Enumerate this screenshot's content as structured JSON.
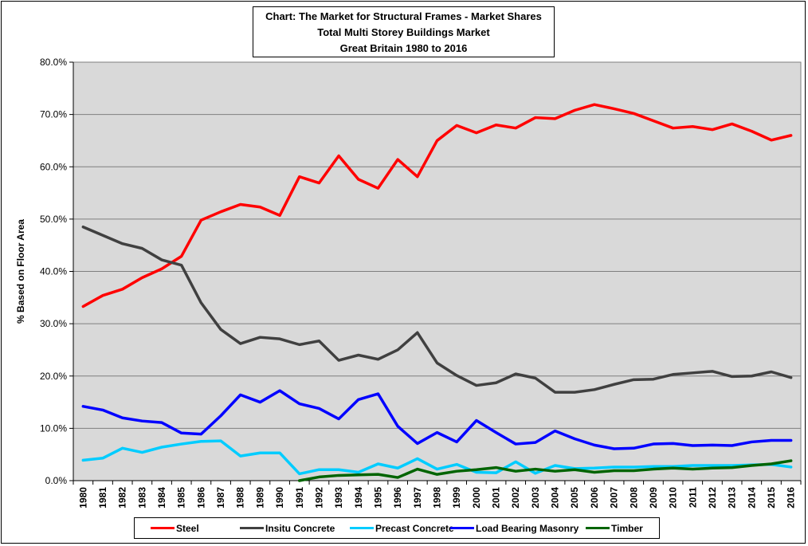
{
  "chart_data": {
    "type": "line",
    "title_lines": [
      "Chart: The Market for Structural Frames - Market Shares",
      "Total Multi Storey Buildings Market",
      "Great Britain 1980 to 2016"
    ],
    "xlabel": "",
    "ylabel": "% Based on Floor Area",
    "ylim": [
      0,
      80
    ],
    "y_ticks": [
      "0.0%",
      "10.0%",
      "20.0%",
      "30.0%",
      "40.0%",
      "50.0%",
      "60.0%",
      "70.0%",
      "80.0%"
    ],
    "grid": true,
    "background_color": "#d9d9d9",
    "legend_position": "bottom",
    "categories": [
      "1980",
      "1981",
      "1982",
      "1983",
      "1984",
      "1985",
      "1986",
      "1987",
      "1988",
      "1989",
      "1990",
      "1991",
      "1992",
      "1993",
      "1994",
      "1995",
      "1996",
      "1997",
      "1998",
      "1999",
      "2000",
      "2001",
      "2002",
      "2003",
      "2004",
      "2005",
      "2006",
      "2007",
      "2008",
      "2009",
      "2010",
      "2011",
      "2012",
      "2013",
      "2014",
      "2015",
      "2016"
    ],
    "series": [
      {
        "name": "Steel",
        "color": "#ff0000",
        "values": [
          33.3,
          35.4,
          36.6,
          38.8,
          40.5,
          42.9,
          49.8,
          51.4,
          52.8,
          52.3,
          50.7,
          58.1,
          56.9,
          62.1,
          57.6,
          55.9,
          61.4,
          58.1,
          65.0,
          67.9,
          66.5,
          68.0,
          67.4,
          69.4,
          69.2,
          70.8,
          71.9,
          71.1,
          70.2,
          68.8,
          67.4,
          67.7,
          67.1,
          68.2,
          66.8,
          65.1,
          66.0
        ]
      },
      {
        "name": "Insitu Concrete",
        "color": "#404040",
        "values": [
          48.5,
          46.9,
          45.3,
          44.4,
          42.2,
          41.2,
          34.0,
          28.9,
          26.2,
          27.4,
          27.1,
          26.0,
          26.7,
          23.0,
          24.0,
          23.2,
          25.0,
          28.3,
          22.5,
          20.1,
          18.2,
          18.7,
          20.4,
          19.6,
          16.9,
          16.9,
          17.4,
          18.4,
          19.3,
          19.4,
          20.3,
          20.6,
          20.9,
          19.9,
          20.0,
          20.8,
          19.7
        ]
      },
      {
        "name": "Precast Concrete",
        "color": "#00ccff",
        "values": [
          3.9,
          4.3,
          6.2,
          5.4,
          6.4,
          7.0,
          7.5,
          7.6,
          4.7,
          5.3,
          5.3,
          1.3,
          2.1,
          2.1,
          1.6,
          3.2,
          2.4,
          4.2,
          2.2,
          3.1,
          1.6,
          1.5,
          3.6,
          1.4,
          2.9,
          2.3,
          2.4,
          2.6,
          2.6,
          2.7,
          2.7,
          2.9,
          2.9,
          2.9,
          3.0,
          3.1,
          2.6
        ]
      },
      {
        "name": "Load Bearing Masonry",
        "color": "#0000ff",
        "values": [
          14.2,
          13.5,
          12.0,
          11.4,
          11.1,
          9.1,
          8.9,
          12.4,
          16.4,
          15.0,
          17.2,
          14.7,
          13.8,
          11.8,
          15.5,
          16.6,
          10.4,
          7.1,
          9.2,
          7.4,
          11.5,
          9.2,
          7.0,
          7.3,
          9.5,
          8.0,
          6.8,
          6.1,
          6.2,
          7.0,
          7.1,
          6.7,
          6.8,
          6.7,
          7.4,
          7.7,
          7.7
        ]
      },
      {
        "name": "Timber",
        "color": "#006400",
        "values": [
          null,
          null,
          null,
          null,
          null,
          null,
          null,
          null,
          null,
          null,
          null,
          0.0,
          0.7,
          1.0,
          1.1,
          1.2,
          0.6,
          2.2,
          1.2,
          1.8,
          2.1,
          2.5,
          1.8,
          2.2,
          1.8,
          2.1,
          1.6,
          1.9,
          1.9,
          2.2,
          2.4,
          2.2,
          2.4,
          2.5,
          2.9,
          3.2,
          3.8
        ]
      }
    ]
  }
}
